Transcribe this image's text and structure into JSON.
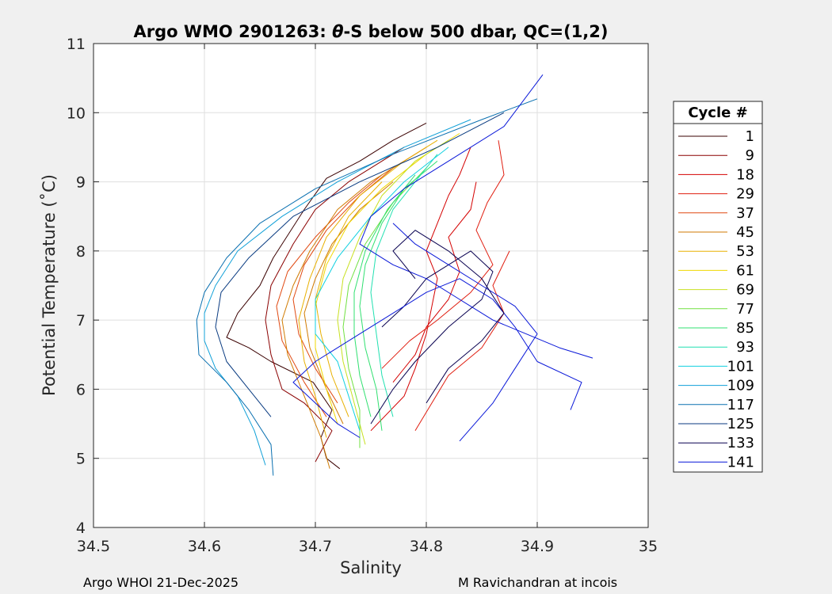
{
  "chart_data": {
    "type": "line",
    "title_prefix": "Argo WMO 2901263: ",
    "title_theta": "θ",
    "title_suffix": "-S below 500 dbar,  QC=(1,2)",
    "xlabel": "Salinity",
    "ylabel": "Potential Temperature (˚C)",
    "xlim": [
      34.5,
      35.0
    ],
    "ylim": [
      4,
      11
    ],
    "xticks": [
      "34.5",
      "34.6",
      "34.7",
      "34.8",
      "34.9",
      "35"
    ],
    "yticks": [
      "4",
      "5",
      "6",
      "7",
      "8",
      "9",
      "10",
      "11"
    ],
    "grid": true,
    "legend": {
      "title": "Cycle #",
      "placement": "outside-right",
      "entries": [
        {
          "label": "1",
          "color": "#3a0000"
        },
        {
          "label": "9",
          "color": "#8a0000"
        },
        {
          "label": "18",
          "color": "#d40000"
        },
        {
          "label": "29",
          "color": "#e01e10"
        },
        {
          "label": "37",
          "color": "#e04810"
        },
        {
          "label": "45",
          "color": "#d07a00"
        },
        {
          "label": "53",
          "color": "#e8b000"
        },
        {
          "label": "61",
          "color": "#f0d800"
        },
        {
          "label": "69",
          "color": "#c8e020"
        },
        {
          "label": "77",
          "color": "#70e040"
        },
        {
          "label": "85",
          "color": "#30e070"
        },
        {
          "label": "93",
          "color": "#20e0b0"
        },
        {
          "label": "101",
          "color": "#10d0e0"
        },
        {
          "label": "109",
          "color": "#10a0d8"
        },
        {
          "label": "117",
          "color": "#0a70b0"
        },
        {
          "label": "125",
          "color": "#083a80"
        },
        {
          "label": "133",
          "color": "#080050"
        },
        {
          "label": "141",
          "color": "#0a18d8"
        }
      ]
    },
    "series": [
      {
        "color": "#3a0000",
        "points": [
          [
            34.722,
            4.85
          ],
          [
            34.71,
            5.0
          ],
          [
            34.705,
            5.3
          ],
          [
            34.715,
            5.7
          ],
          [
            34.698,
            6.1
          ],
          [
            34.66,
            6.4
          ],
          [
            34.64,
            6.6
          ],
          [
            34.62,
            6.75
          ],
          [
            34.63,
            7.1
          ],
          [
            34.65,
            7.5
          ],
          [
            34.662,
            7.9
          ],
          [
            34.69,
            8.6
          ],
          [
            34.71,
            9.05
          ],
          [
            34.74,
            9.3
          ],
          [
            34.77,
            9.6
          ],
          [
            34.8,
            9.85
          ]
        ]
      },
      {
        "color": "#8a0000",
        "points": [
          [
            34.7,
            4.95
          ],
          [
            34.715,
            5.4
          ],
          [
            34.69,
            5.8
          ],
          [
            34.67,
            6.0
          ],
          [
            34.66,
            6.5
          ],
          [
            34.655,
            7.0
          ],
          [
            34.66,
            7.5
          ],
          [
            34.68,
            8.1
          ],
          [
            34.7,
            8.6
          ],
          [
            34.73,
            9.0
          ],
          [
            34.76,
            9.3
          ],
          [
            34.78,
            9.5
          ]
        ]
      },
      {
        "color": "#d40000",
        "points": [
          [
            34.75,
            5.4
          ],
          [
            34.78,
            5.9
          ],
          [
            34.79,
            6.3
          ],
          [
            34.8,
            6.8
          ],
          [
            34.805,
            7.2
          ],
          [
            34.81,
            7.6
          ],
          [
            34.8,
            8.0
          ],
          [
            34.81,
            8.4
          ],
          [
            34.82,
            8.8
          ],
          [
            34.83,
            9.1
          ],
          [
            34.84,
            9.5
          ]
        ]
      },
      {
        "color": "#d40000",
        "points": [
          [
            34.77,
            6.1
          ],
          [
            34.79,
            6.5
          ],
          [
            34.8,
            6.9
          ],
          [
            34.82,
            7.3
          ],
          [
            34.83,
            7.7
          ],
          [
            34.82,
            8.2
          ],
          [
            34.84,
            8.6
          ],
          [
            34.845,
            9.0
          ]
        ]
      },
      {
        "color": "#e01e10",
        "points": [
          [
            34.76,
            6.3
          ],
          [
            34.785,
            6.7
          ],
          [
            34.81,
            7.0
          ],
          [
            34.84,
            7.4
          ],
          [
            34.86,
            7.8
          ],
          [
            34.845,
            8.3
          ],
          [
            34.855,
            8.7
          ],
          [
            34.87,
            9.1
          ],
          [
            34.865,
            9.6
          ]
        ]
      },
      {
        "color": "#e01e10",
        "points": [
          [
            34.79,
            5.4
          ],
          [
            34.805,
            5.8
          ],
          [
            34.82,
            6.2
          ],
          [
            34.85,
            6.6
          ],
          [
            34.87,
            7.1
          ],
          [
            34.86,
            7.5
          ],
          [
            34.875,
            8.0
          ]
        ]
      },
      {
        "color": "#e04810",
        "points": [
          [
            34.72,
            5.8
          ],
          [
            34.7,
            6.3
          ],
          [
            34.685,
            6.8
          ],
          [
            34.68,
            7.3
          ],
          [
            34.69,
            7.8
          ],
          [
            34.71,
            8.3
          ],
          [
            34.74,
            8.8
          ],
          [
            34.77,
            9.2
          ],
          [
            34.8,
            9.5
          ]
        ]
      },
      {
        "color": "#e04810",
        "points": [
          [
            34.71,
            5.6
          ],
          [
            34.69,
            6.1
          ],
          [
            34.67,
            6.7
          ],
          [
            34.665,
            7.2
          ],
          [
            34.675,
            7.7
          ],
          [
            34.7,
            8.2
          ],
          [
            34.73,
            8.7
          ],
          [
            34.76,
            9.1
          ]
        ]
      },
      {
        "color": "#d07a00",
        "points": [
          [
            34.713,
            4.85
          ],
          [
            34.705,
            5.3
          ],
          [
            34.69,
            5.9
          ],
          [
            34.675,
            6.5
          ],
          [
            34.67,
            7.0
          ],
          [
            34.68,
            7.5
          ],
          [
            34.695,
            8.0
          ],
          [
            34.72,
            8.6
          ],
          [
            34.75,
            9.0
          ],
          [
            34.78,
            9.3
          ]
        ]
      },
      {
        "color": "#d07a00",
        "points": [
          [
            34.725,
            5.5
          ],
          [
            34.71,
            6.0
          ],
          [
            34.695,
            6.6
          ],
          [
            34.69,
            7.1
          ],
          [
            34.7,
            7.6
          ],
          [
            34.715,
            8.1
          ],
          [
            34.74,
            8.6
          ],
          [
            34.77,
            9.0
          ]
        ]
      },
      {
        "color": "#e8b000",
        "points": [
          [
            34.71,
            5.3
          ],
          [
            34.7,
            5.9
          ],
          [
            34.69,
            6.4
          ],
          [
            34.685,
            7.0
          ],
          [
            34.695,
            7.6
          ],
          [
            34.71,
            8.2
          ],
          [
            34.74,
            8.8
          ],
          [
            34.78,
            9.3
          ],
          [
            34.81,
            9.6
          ]
        ]
      },
      {
        "color": "#e8b000",
        "points": [
          [
            34.73,
            5.6
          ],
          [
            34.715,
            6.2
          ],
          [
            34.705,
            6.8
          ],
          [
            34.7,
            7.3
          ],
          [
            34.71,
            7.9
          ],
          [
            34.73,
            8.5
          ],
          [
            34.76,
            9.0
          ]
        ]
      },
      {
        "color": "#f0d800",
        "points": [
          [
            34.72,
            5.5
          ],
          [
            34.71,
            6.0
          ],
          [
            34.7,
            6.6
          ],
          [
            34.7,
            7.2
          ],
          [
            34.71,
            7.8
          ],
          [
            34.73,
            8.4
          ],
          [
            34.76,
            8.9
          ],
          [
            34.8,
            9.4
          ],
          [
            34.83,
            9.7
          ]
        ]
      },
      {
        "color": "#c8e020",
        "points": [
          [
            34.745,
            5.2
          ],
          [
            34.735,
            5.8
          ],
          [
            34.725,
            6.4
          ],
          [
            34.72,
            7.0
          ],
          [
            34.725,
            7.6
          ],
          [
            34.74,
            8.2
          ],
          [
            34.76,
            8.8
          ],
          [
            34.79,
            9.3
          ],
          [
            34.82,
            9.6
          ]
        ]
      },
      {
        "color": "#70e040",
        "points": [
          [
            34.74,
            5.15
          ],
          [
            34.74,
            5.7
          ],
          [
            34.73,
            6.3
          ],
          [
            34.725,
            6.9
          ],
          [
            34.73,
            7.5
          ],
          [
            34.745,
            8.1
          ],
          [
            34.77,
            8.7
          ],
          [
            34.8,
            9.2
          ]
        ]
      },
      {
        "color": "#30e070",
        "points": [
          [
            34.76,
            5.4
          ],
          [
            34.755,
            6.0
          ],
          [
            34.745,
            6.6
          ],
          [
            34.74,
            7.2
          ],
          [
            34.745,
            7.8
          ],
          [
            34.76,
            8.4
          ],
          [
            34.78,
            8.9
          ],
          [
            34.81,
            9.3
          ]
        ]
      },
      {
        "color": "#30e070",
        "points": [
          [
            34.75,
            5.6
          ],
          [
            34.74,
            6.2
          ],
          [
            34.735,
            6.8
          ],
          [
            34.735,
            7.4
          ],
          [
            34.745,
            8.0
          ],
          [
            34.765,
            8.6
          ],
          [
            34.79,
            9.1
          ]
        ]
      },
      {
        "color": "#20e0b0",
        "points": [
          [
            34.77,
            5.6
          ],
          [
            34.76,
            6.2
          ],
          [
            34.755,
            6.8
          ],
          [
            34.75,
            7.4
          ],
          [
            34.755,
            8.0
          ],
          [
            34.77,
            8.6
          ],
          [
            34.79,
            9.0
          ],
          [
            34.81,
            9.4
          ]
        ]
      },
      {
        "color": "#10d0e0",
        "points": [
          [
            34.74,
            5.4
          ],
          [
            34.73,
            5.9
          ],
          [
            34.72,
            6.4
          ],
          [
            34.7,
            6.8
          ],
          [
            34.7,
            7.3
          ],
          [
            34.72,
            7.9
          ],
          [
            34.75,
            8.5
          ],
          [
            34.78,
            9.0
          ],
          [
            34.82,
            9.5
          ]
        ]
      },
      {
        "color": "#10a0d8",
        "points": [
          [
            34.655,
            4.9
          ],
          [
            34.645,
            5.4
          ],
          [
            34.63,
            5.9
          ],
          [
            34.61,
            6.3
          ],
          [
            34.6,
            6.7
          ],
          [
            34.6,
            7.1
          ],
          [
            34.61,
            7.5
          ],
          [
            34.63,
            8.0
          ],
          [
            34.67,
            8.5
          ],
          [
            34.72,
            9.0
          ],
          [
            34.78,
            9.5
          ],
          [
            34.84,
            9.9
          ]
        ]
      },
      {
        "color": "#0a70b0",
        "points": [
          [
            34.662,
            4.75
          ],
          [
            34.66,
            5.2
          ],
          [
            34.64,
            5.7
          ],
          [
            34.62,
            6.1
          ],
          [
            34.595,
            6.5
          ],
          [
            34.593,
            7.0
          ],
          [
            34.6,
            7.4
          ],
          [
            34.62,
            7.9
          ],
          [
            34.65,
            8.4
          ],
          [
            34.7,
            8.9
          ],
          [
            34.77,
            9.4
          ],
          [
            34.85,
            9.9
          ],
          [
            34.9,
            10.2
          ]
        ]
      },
      {
        "color": "#083a80",
        "points": [
          [
            34.66,
            5.6
          ],
          [
            34.64,
            6.0
          ],
          [
            34.62,
            6.4
          ],
          [
            34.61,
            6.9
          ],
          [
            34.615,
            7.4
          ],
          [
            34.64,
            7.9
          ],
          [
            34.68,
            8.5
          ],
          [
            34.74,
            9.0
          ],
          [
            34.81,
            9.5
          ],
          [
            34.87,
            10.0
          ]
        ]
      },
      {
        "color": "#080050",
        "points": [
          [
            34.75,
            5.5
          ],
          [
            34.77,
            6.0
          ],
          [
            34.79,
            6.4
          ],
          [
            34.82,
            6.9
          ],
          [
            34.85,
            7.3
          ],
          [
            34.86,
            7.7
          ],
          [
            34.84,
            8.0
          ],
          [
            34.8,
            7.6
          ],
          [
            34.78,
            7.2
          ],
          [
            34.76,
            6.9
          ]
        ]
      },
      {
        "color": "#0a18d8",
        "points": [
          [
            34.93,
            5.7
          ],
          [
            34.94,
            6.1
          ],
          [
            34.9,
            6.4
          ],
          [
            34.88,
            6.9
          ],
          [
            34.86,
            7.3
          ],
          [
            34.83,
            7.6
          ],
          [
            34.8,
            7.4
          ],
          [
            34.77,
            7.1
          ],
          [
            34.74,
            6.8
          ],
          [
            34.72,
            6.6
          ],
          [
            34.7,
            6.4
          ],
          [
            34.68,
            6.1
          ],
          [
            34.7,
            5.8
          ],
          [
            34.72,
            5.5
          ],
          [
            34.74,
            5.3
          ]
        ]
      },
      {
        "color": "#0a18d8",
        "points": [
          [
            34.95,
            6.45
          ],
          [
            34.92,
            6.6
          ],
          [
            34.89,
            6.8
          ],
          [
            34.86,
            7.0
          ],
          [
            34.83,
            7.3
          ],
          [
            34.8,
            7.6
          ],
          [
            34.77,
            7.8
          ],
          [
            34.74,
            8.1
          ],
          [
            34.75,
            8.5
          ],
          [
            34.78,
            8.9
          ],
          [
            34.82,
            9.3
          ],
          [
            34.87,
            9.8
          ],
          [
            34.905,
            10.55
          ]
        ]
      },
      {
        "color": "#0a18d8",
        "points": [
          [
            34.83,
            5.25
          ],
          [
            34.86,
            5.8
          ],
          [
            34.88,
            6.3
          ],
          [
            34.9,
            6.8
          ],
          [
            34.88,
            7.2
          ],
          [
            34.85,
            7.5
          ],
          [
            34.82,
            7.8
          ],
          [
            34.79,
            8.1
          ],
          [
            34.77,
            8.4
          ]
        ]
      },
      {
        "color": "#080050",
        "points": [
          [
            34.8,
            5.8
          ],
          [
            34.82,
            6.3
          ],
          [
            34.85,
            6.7
          ],
          [
            34.87,
            7.1
          ],
          [
            34.85,
            7.6
          ],
          [
            34.82,
            8.0
          ],
          [
            34.79,
            8.3
          ],
          [
            34.77,
            8.0
          ],
          [
            34.79,
            7.6
          ]
        ]
      }
    ]
  },
  "footer": {
    "left": "Argo WHOI 21-Dec-2025",
    "right": "M Ravichandran at incois"
  }
}
